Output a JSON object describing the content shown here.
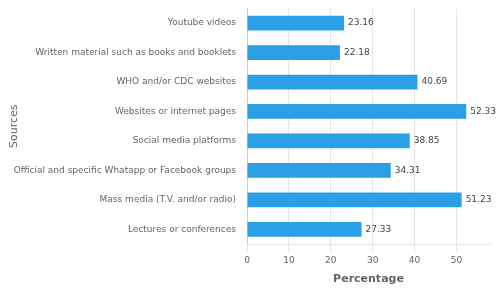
{
  "chart_data": {
    "type": "bar",
    "orientation": "horizontal",
    "categories": [
      "Lectures or conferences",
      "Mass media (T.V. and/or radio)",
      "Official and specific Whatapp or Facebook groups",
      "Social media platforms",
      "Websites or internet pages",
      "WHO and/or CDC websites",
      "Written material such as books and booklets",
      "Youtube videos"
    ],
    "values": [
      27.33,
      51.23,
      34.31,
      38.85,
      52.33,
      40.69,
      22.18,
      23.16
    ],
    "color": "#2B9FE6",
    "xlabel": "Percentage",
    "ylabel": "Sources",
    "xlim": [
      0,
      58
    ],
    "xticks": [
      0,
      10,
      20,
      30,
      40,
      50
    ],
    "grid": true,
    "data_labels": true
  }
}
